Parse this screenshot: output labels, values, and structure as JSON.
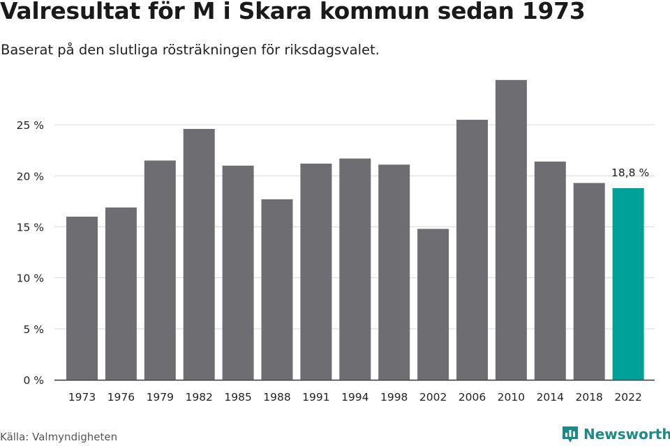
{
  "chart_data": {
    "type": "bar",
    "title": "Valresultat för M i Skara kommun sedan 1973",
    "subtitle": "Baserat på den slutliga rösträkningen för riksdagsvalet.",
    "categories": [
      "1973",
      "1976",
      "1979",
      "1982",
      "1985",
      "1988",
      "1991",
      "1994",
      "1998",
      "2002",
      "2006",
      "2010",
      "2014",
      "2018",
      "2022"
    ],
    "values": [
      16.0,
      16.9,
      21.5,
      24.6,
      21.0,
      17.7,
      21.2,
      21.7,
      21.1,
      14.8,
      25.5,
      29.4,
      21.4,
      19.3,
      18.8
    ],
    "highlight_index": 14,
    "highlight_label": "18,8 %",
    "ylim": [
      0,
      30
    ],
    "yticks": [
      0,
      5,
      10,
      15,
      20,
      25
    ],
    "ytick_labels": [
      "0 %",
      "5 %",
      "10 %",
      "15 %",
      "20 %",
      "25 %"
    ],
    "xlabel": "",
    "ylabel": "",
    "grid": true,
    "colors": {
      "bar": "#6e6d72",
      "highlight": "#00a199",
      "grid": "#d9d9d9",
      "axis": "#333333"
    }
  },
  "footer": {
    "source": "Källa: Valmyndigheten",
    "brand": "Newsworthy",
    "brand_icon": "newsworthy-logo-icon",
    "brand_color": "#1e8a88"
  }
}
